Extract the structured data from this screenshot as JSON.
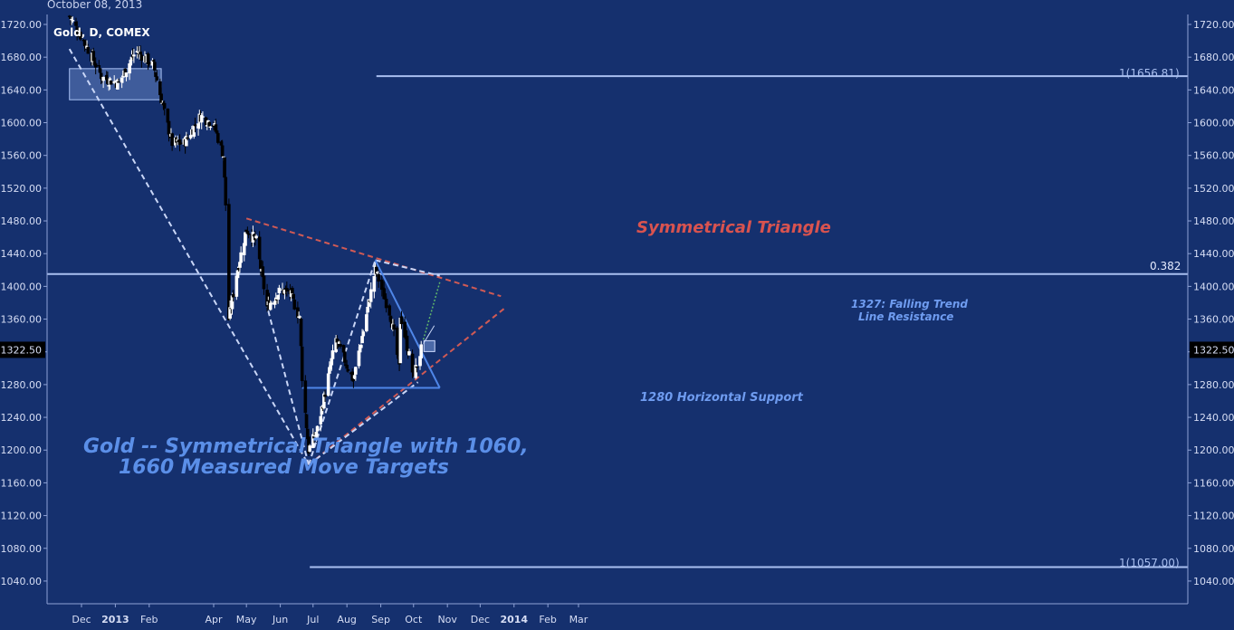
{
  "header": {
    "date": "October 08, 2013",
    "symbol": "Gold, D, COMEX"
  },
  "chart_data": {
    "type": "candlestick",
    "title": "Gold -- Symmetrical Triangle with 1060, 1660 Measured Move Targets",
    "title_lines": [
      "Gold -- Symmetrical Triangle with 1060,",
      "1660 Measured Move Targets"
    ],
    "ylim": [
      1005,
      1735
    ],
    "y_ticks": [
      1720,
      1680,
      1640,
      1600,
      1560,
      1520,
      1480,
      1440,
      1400,
      1360,
      1320,
      1280,
      1240,
      1200,
      1160,
      1120,
      1080,
      1040
    ],
    "y_tick_labels": [
      "1720.00",
      "1680.00",
      "1640.00",
      "1600.00",
      "1560.00",
      "1520.00",
      "1480.00",
      "1440.00",
      "1400.00",
      "1360.00",
      "1320.00",
      "1280.00",
      "1240.00",
      "1200.00",
      "1160.00",
      "1120.00",
      "1080.00",
      "1040.00"
    ],
    "x_ticks": [
      {
        "label": "Dec",
        "date": "2012-12-01",
        "bold": false
      },
      {
        "label": "2013",
        "date": "2013-01-01",
        "bold": true
      },
      {
        "label": "Feb",
        "date": "2013-02-01",
        "bold": false
      },
      {
        "label": "Apr",
        "date": "2013-04-01",
        "bold": false
      },
      {
        "label": "May",
        "date": "2013-05-01",
        "bold": false
      },
      {
        "label": "Jun",
        "date": "2013-06-01",
        "bold": false
      },
      {
        "label": "Jul",
        "date": "2013-07-01",
        "bold": false
      },
      {
        "label": "Aug",
        "date": "2013-08-01",
        "bold": false
      },
      {
        "label": "Sep",
        "date": "2013-09-01",
        "bold": false
      },
      {
        "label": "Oct",
        "date": "2013-10-01",
        "bold": false
      },
      {
        "label": "Nov",
        "date": "2013-11-01",
        "bold": false
      },
      {
        "label": "Dec",
        "date": "2013-12-01",
        "bold": false
      },
      {
        "label": "2014",
        "date": "2014-01-01",
        "bold": true
      },
      {
        "label": "Feb",
        "date": "2014-02-01",
        "bold": false
      },
      {
        "label": "Mar",
        "date": "2014-03-01",
        "bold": false
      }
    ],
    "price_path": [
      {
        "date": "2012-11-20",
        "close": 1730
      },
      {
        "date": "2012-12-05",
        "close": 1695
      },
      {
        "date": "2012-12-20",
        "close": 1655
      },
      {
        "date": "2013-01-04",
        "close": 1648
      },
      {
        "date": "2013-01-20",
        "close": 1688
      },
      {
        "date": "2013-02-05",
        "close": 1670
      },
      {
        "date": "2013-02-15",
        "close": 1612
      },
      {
        "date": "2013-02-22",
        "close": 1575
      },
      {
        "date": "2013-03-05",
        "close": 1575
      },
      {
        "date": "2013-03-20",
        "close": 1608
      },
      {
        "date": "2013-04-01",
        "close": 1598
      },
      {
        "date": "2013-04-10",
        "close": 1560
      },
      {
        "date": "2013-04-12",
        "close": 1500
      },
      {
        "date": "2013-04-15",
        "close": 1360
      },
      {
        "date": "2013-04-22",
        "close": 1415
      },
      {
        "date": "2013-05-01",
        "close": 1470
      },
      {
        "date": "2013-05-10",
        "close": 1455
      },
      {
        "date": "2013-05-20",
        "close": 1375
      },
      {
        "date": "2013-06-01",
        "close": 1395
      },
      {
        "date": "2013-06-10",
        "close": 1392
      },
      {
        "date": "2013-06-19",
        "close": 1360
      },
      {
        "date": "2013-06-21",
        "close": 1290
      },
      {
        "date": "2013-06-27",
        "close": 1200
      },
      {
        "date": "2013-07-05",
        "close": 1225
      },
      {
        "date": "2013-07-22",
        "close": 1335
      },
      {
        "date": "2013-08-07",
        "close": 1285
      },
      {
        "date": "2013-08-27",
        "close": 1420
      },
      {
        "date": "2013-09-10",
        "close": 1365
      },
      {
        "date": "2013-09-18",
        "close": 1300
      },
      {
        "date": "2013-09-19",
        "close": 1365
      },
      {
        "date": "2013-10-01",
        "close": 1290
      },
      {
        "date": "2013-10-08",
        "close": 1322.5
      }
    ],
    "current_price": {
      "value": 1322.5,
      "label": "1322.50"
    },
    "fib_level": {
      "value": 1415,
      "label": "0.382"
    },
    "targets": [
      {
        "value": 1656.81,
        "label": "1(1656.81)",
        "date_start": "2013-08-28",
        "date_end": "2014-03-01"
      },
      {
        "value": 1057.0,
        "label": "1(1057.00)",
        "date_start": "2013-06-28",
        "date_end": "2014-03-01"
      }
    ],
    "consolidation_box": {
      "date_start": "2012-11-20",
      "date_end": "2013-02-12",
      "low": 1628,
      "high": 1666
    },
    "horizontal_support": {
      "value": 1276,
      "date_start": "2013-06-21",
      "date_end": "2013-10-25",
      "label": "1280 Horizontal Support"
    },
    "falling_trend": {
      "label": "1327: Falling Trend\nLine Resistance",
      "label_lines": [
        "1327: Falling Trend",
        "Line Resistance"
      ]
    },
    "triangle_label": "Symmetrical Triangle",
    "highlight_box": {
      "date": "2013-10-08",
      "value": 1327
    },
    "colors": {
      "background": "#15306e",
      "up_candle": "#ffffff",
      "down_candle": "#000000",
      "light_line": "#a9bff0",
      "blue_line": "#4f86e8",
      "red_line": "#d05a55",
      "annotation_blue": "#5b8fe8",
      "annotation_red": "#d9534f",
      "axis_text": "#d7def5"
    }
  }
}
